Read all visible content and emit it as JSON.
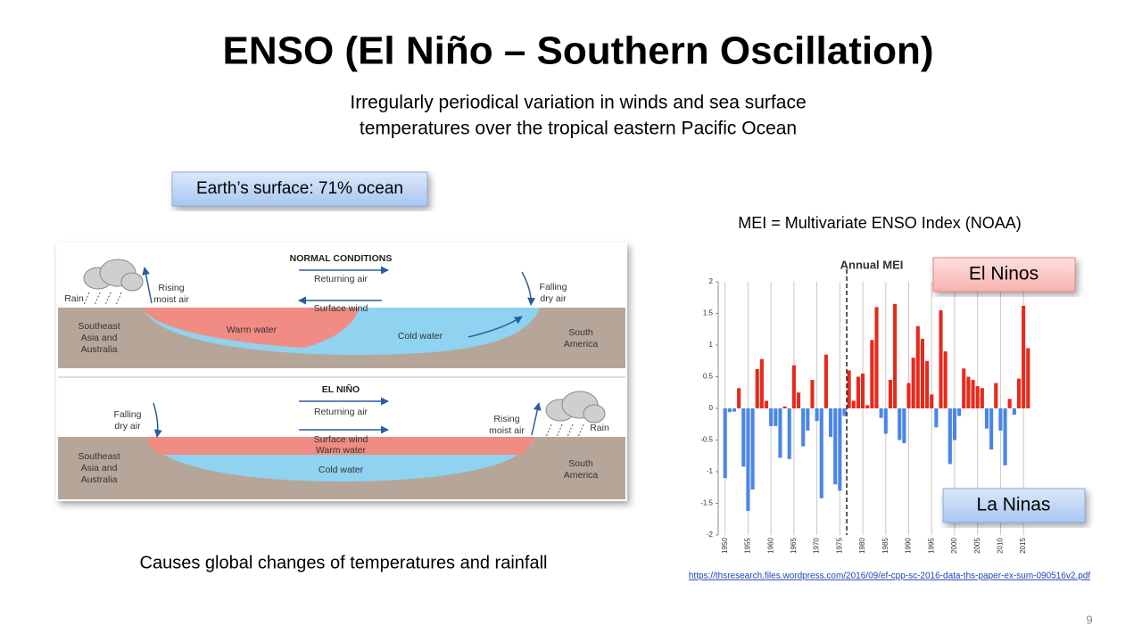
{
  "title": "ENSO (El Niño – Southern Oscillation)",
  "subtitle": [
    "Irregularly periodical variation in winds and sea surface",
    "temperatures over the tropical eastern Pacific Ocean"
  ],
  "ocean_box": "Earth’s surface:  71% ocean",
  "mei_note": "MEI = Multivariate ENSO Index (NOAA)",
  "el_ninos": "El Ninos",
  "la_ninas": "La Ninas",
  "caption": "Causes global changes of temperatures and rainfall",
  "source_url": "https://thsresearch.files.wordpress.com/2016/09/ef-cpp-sc-2016-data-ths-paper-ex-sum-090516v2.pdf",
  "page_number": "9",
  "diagram": {
    "labels": [
      {
        "lines": [
          "NORMAL CONDITIONS"
        ]
      },
      {
        "lines": [
          "Returning air"
        ]
      },
      {
        "lines": [
          "Surface wind"
        ]
      },
      {
        "lines": [
          "Rain"
        ]
      },
      {
        "lines": [
          "Rising",
          "moist air"
        ]
      },
      {
        "lines": [
          "Falling",
          "dry air"
        ]
      },
      {
        "lines": [
          "Southeast",
          "Asia and",
          "Australia"
        ]
      },
      {
        "lines": [
          "Warm water"
        ]
      },
      {
        "lines": [
          "Cold water"
        ]
      },
      {
        "lines": [
          "South",
          "America"
        ]
      },
      {
        "lines": [
          "EL NIÑO"
        ]
      },
      {
        "lines": [
          "Returning air"
        ]
      },
      {
        "lines": [
          "Surface wind"
        ]
      },
      {
        "lines": [
          "Warm water"
        ]
      },
      {
        "lines": [
          "Cold water"
        ]
      },
      {
        "lines": [
          "Falling",
          "dry air"
        ]
      },
      {
        "lines": [
          "Rising",
          "moist air"
        ]
      },
      {
        "lines": [
          "Rain"
        ]
      },
      {
        "lines": [
          "Southeast",
          "Asia and",
          "Australia"
        ]
      },
      {
        "lines": [
          "South",
          "America"
        ]
      }
    ]
  },
  "chart_data": {
    "type": "bar",
    "title": "Annual MEI",
    "x": [
      1950,
      1951,
      1952,
      1953,
      1954,
      1955,
      1956,
      1957,
      1958,
      1959,
      1960,
      1961,
      1962,
      1963,
      1964,
      1965,
      1966,
      1967,
      1968,
      1969,
      1970,
      1971,
      1972,
      1973,
      1974,
      1975,
      1976,
      1977,
      1978,
      1979,
      1980,
      1981,
      1982,
      1983,
      1984,
      1985,
      1986,
      1987,
      1988,
      1989,
      1990,
      1991,
      1992,
      1993,
      1994,
      1995,
      1996,
      1997,
      1998,
      1999,
      2000,
      2001,
      2002,
      2003,
      2004,
      2005,
      2006,
      2007,
      2008,
      2009,
      2010,
      2011,
      2012,
      2013,
      2014,
      2015,
      2016
    ],
    "values": [
      -1.1,
      -0.06,
      -0.05,
      0.32,
      -0.92,
      -1.62,
      -1.28,
      0.62,
      0.78,
      0.12,
      -0.28,
      -0.28,
      -0.78,
      0.03,
      -0.8,
      0.68,
      0.25,
      -0.6,
      -0.35,
      0.45,
      -0.2,
      -1.42,
      0.85,
      -0.45,
      -1.2,
      -1.3,
      -0.12,
      0.6,
      0.12,
      0.5,
      0.55,
      0.05,
      1.08,
      1.6,
      -0.15,
      -0.4,
      0.45,
      1.65,
      -0.5,
      -0.55,
      0.4,
      0.8,
      1.3,
      1.1,
      0.75,
      0.22,
      -0.3,
      1.55,
      0.9,
      -0.88,
      -0.5,
      -0.12,
      0.63,
      0.5,
      0.45,
      0.35,
      0.32,
      -0.32,
      -0.65,
      0.4,
      -0.35,
      -0.9,
      0.15,
      -0.1,
      0.47,
      1.62,
      0.95
    ],
    "positive_color": "#e8291c",
    "negative_color": "#4a86e8",
    "divider_x": 1976.5,
    "xlim": [
      1948.5,
      2017.5
    ],
    "xticks": [
      1950,
      1955,
      1960,
      1965,
      1970,
      1975,
      1980,
      1985,
      1990,
      1995,
      2000,
      2005,
      2010,
      2015
    ],
    "ylim": [
      -2,
      2
    ],
    "yticks": [
      -2,
      -1.5,
      -1,
      -0.5,
      0,
      0.5,
      1,
      1.5,
      2
    ],
    "grid": true
  }
}
